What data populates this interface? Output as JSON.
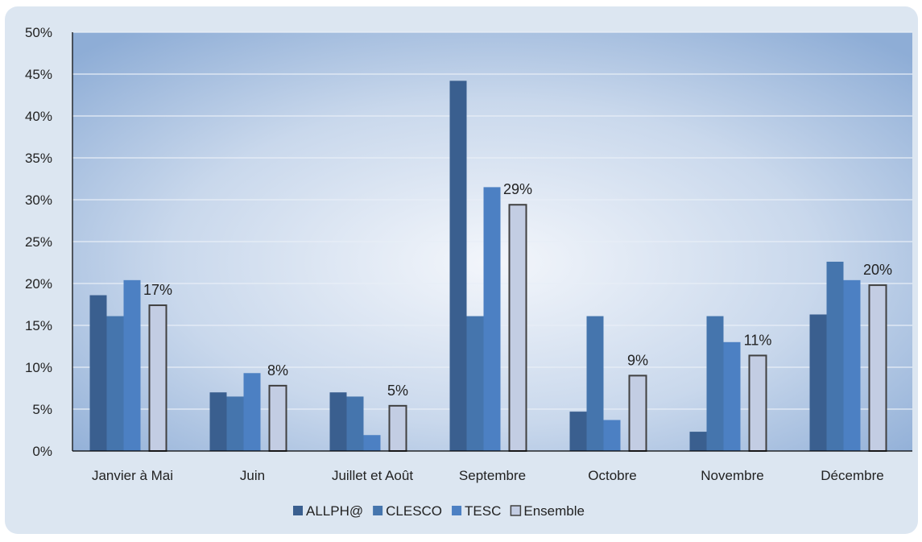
{
  "chart_data": {
    "type": "bar",
    "title": "",
    "xlabel": "",
    "ylabel": "",
    "ylim": [
      0,
      50
    ],
    "y_ticks": [
      "0%",
      "5%",
      "10%",
      "15%",
      "20%",
      "25%",
      "30%",
      "35%",
      "40%",
      "45%",
      "50%"
    ],
    "y_tick_values": [
      0,
      5,
      10,
      15,
      20,
      25,
      30,
      35,
      40,
      45,
      50
    ],
    "grid": true,
    "legend_position": "bottom",
    "categories": [
      "Janvier à Mai",
      "Juin",
      "Juillet et Août",
      "Septembre",
      "Octobre",
      "Novembre",
      "Décembre"
    ],
    "series": [
      {
        "name": "ALLPH@",
        "values": [
          18.6,
          7.0,
          7.0,
          44.2,
          4.7,
          2.3,
          16.3
        ],
        "color": "#3a5f8f"
      },
      {
        "name": "CLESCO",
        "values": [
          16.1,
          6.5,
          6.5,
          16.1,
          16.1,
          16.1,
          22.6
        ],
        "color": "#4575ad"
      },
      {
        "name": "TESC",
        "values": [
          20.4,
          9.3,
          1.9,
          31.5,
          3.7,
          13.0,
          20.4
        ],
        "color": "#4c80c3"
      },
      {
        "name": "Ensemble",
        "values": [
          17.4,
          7.8,
          5.4,
          29.4,
          9.0,
          11.4,
          19.8
        ],
        "color": "#c3cde3",
        "border": "#404040"
      }
    ],
    "data_labels": {
      "series": "Ensemble",
      "labels": [
        "17%",
        "8%",
        "5%",
        "29%",
        "9%",
        "11%",
        "20%"
      ]
    }
  }
}
